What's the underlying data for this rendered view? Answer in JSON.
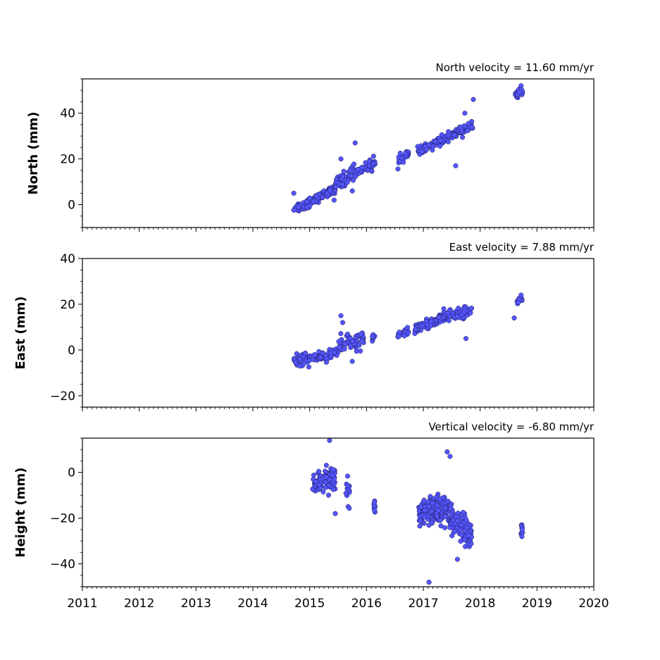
{
  "chart_data": [
    {
      "type": "scatter",
      "title": "North velocity = 11.60 mm/yr",
      "ylabel": "North (mm)",
      "xlim": [
        2011,
        2020
      ],
      "ylim": [
        -10,
        55
      ],
      "yticks": [
        0,
        20,
        40
      ],
      "marker_color": "#5555ff",
      "segments": [
        {
          "x0": 2014.72,
          "x1": 2015.0,
          "y0": -2,
          "y1": 1,
          "n": 40,
          "spread": 2.2
        },
        {
          "x0": 2015.0,
          "x1": 2015.45,
          "y0": 1,
          "y1": 7,
          "n": 70,
          "spread": 1.6
        },
        {
          "x0": 2015.45,
          "x1": 2015.8,
          "y0": 8,
          "y1": 15,
          "n": 55,
          "spread": 3.0
        },
        {
          "x0": 2015.8,
          "x1": 2016.15,
          "y0": 14,
          "y1": 18,
          "n": 45,
          "spread": 2.2
        },
        {
          "x0": 2016.55,
          "x1": 2016.75,
          "y0": 19,
          "y1": 23,
          "n": 25,
          "spread": 1.8
        },
        {
          "x0": 2016.9,
          "x1": 2017.4,
          "y0": 23,
          "y1": 29,
          "n": 80,
          "spread": 1.6
        },
        {
          "x0": 2017.4,
          "x1": 2017.88,
          "y0": 29,
          "y1": 35,
          "n": 70,
          "spread": 2.0
        },
        {
          "x0": 2018.62,
          "x1": 2018.75,
          "y0": 48,
          "y1": 50,
          "n": 25,
          "spread": 1.4
        }
      ],
      "x": [
        2014.72,
        2015.55,
        2015.8,
        2015.75,
        2016.05,
        2017.57,
        2017.73,
        2017.88,
        2018.72,
        2015.43
      ],
      "y": [
        5,
        20,
        27,
        6,
        19,
        17,
        40,
        46,
        52,
        2
      ]
    },
    {
      "type": "scatter",
      "title": "East velocity = 7.88 mm/yr",
      "ylabel": "East (mm)",
      "xlim": [
        2011,
        2020
      ],
      "ylim": [
        -25,
        40
      ],
      "yticks": [
        -20,
        0,
        20,
        40
      ],
      "marker_color": "#5555ff",
      "segments": [
        {
          "x0": 2014.72,
          "x1": 2015.0,
          "y0": -5,
          "y1": -4,
          "n": 45,
          "spread": 2.4
        },
        {
          "x0": 2015.0,
          "x1": 2015.5,
          "y0": -4,
          "y1": -1,
          "n": 70,
          "spread": 2.0
        },
        {
          "x0": 2015.5,
          "x1": 2015.95,
          "y0": 1,
          "y1": 5,
          "n": 60,
          "spread": 3.4
        },
        {
          "x0": 2016.1,
          "x1": 2016.15,
          "y0": 5,
          "y1": 7,
          "n": 8,
          "spread": 1.2
        },
        {
          "x0": 2016.55,
          "x1": 2016.75,
          "y0": 7,
          "y1": 8,
          "n": 25,
          "spread": 1.5
        },
        {
          "x0": 2016.85,
          "x1": 2017.25,
          "y0": 9,
          "y1": 13,
          "n": 70,
          "spread": 1.8
        },
        {
          "x0": 2017.25,
          "x1": 2017.85,
          "y0": 14,
          "y1": 17,
          "n": 90,
          "spread": 2.0
        },
        {
          "x0": 2018.65,
          "x1": 2018.75,
          "y0": 21,
          "y1": 22,
          "n": 15,
          "spread": 1.4
        }
      ],
      "x": [
        2015.55,
        2015.58,
        2015.75,
        2017.75,
        2018.6,
        2018.72
      ],
      "y": [
        15,
        12,
        -5,
        5,
        14,
        24
      ]
    },
    {
      "type": "scatter",
      "title": "Vertical velocity = -6.80 mm/yr",
      "ylabel": "Height (mm)",
      "xlabel": "",
      "xlim": [
        2011,
        2020
      ],
      "ylim": [
        -50,
        15
      ],
      "yticks": [
        -40,
        -20,
        0
      ],
      "xticks": [
        2011,
        2012,
        2013,
        2014,
        2015,
        2016,
        2017,
        2018,
        2019,
        2020
      ],
      "marker_color": "#5555ff",
      "segments": [
        {
          "x0": 2015.05,
          "x1": 2015.45,
          "y0": -5,
          "y1": -2,
          "n": 110,
          "spread": 4.5
        },
        {
          "x0": 2015.63,
          "x1": 2015.7,
          "y0": -8,
          "y1": -8,
          "n": 14,
          "spread": 7.0
        },
        {
          "x0": 2016.13,
          "x1": 2016.15,
          "y0": -15,
          "y1": -15,
          "n": 10,
          "spread": 4.5
        },
        {
          "x0": 2016.92,
          "x1": 2017.45,
          "y0": -18,
          "y1": -16,
          "n": 170,
          "spread": 5.5
        },
        {
          "x0": 2017.45,
          "x1": 2017.85,
          "y0": -20,
          "y1": -28,
          "n": 110,
          "spread": 6.0
        },
        {
          "x0": 2018.72,
          "x1": 2018.75,
          "y0": -24,
          "y1": -24,
          "n": 12,
          "spread": 4.5
        }
      ],
      "x": [
        2015.35,
        2017.42,
        2017.47,
        2017.1,
        2017.6,
        2015.45
      ],
      "y": [
        14,
        9,
        7,
        -48,
        -38,
        -18
      ]
    }
  ]
}
